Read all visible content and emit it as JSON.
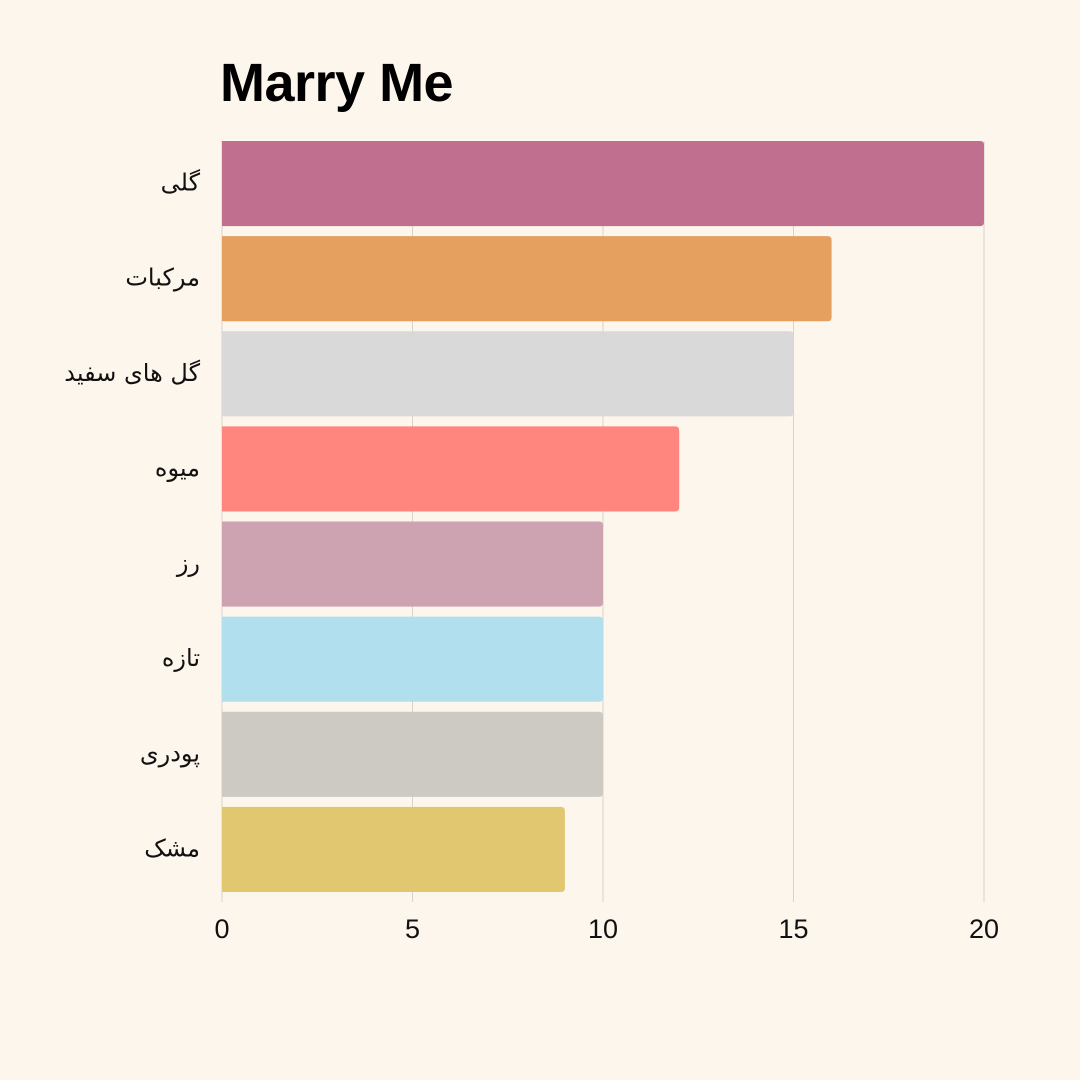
{
  "chart_data": {
    "type": "bar",
    "orientation": "horizontal",
    "title": "Marry Me",
    "xlabel": "",
    "ylabel": "",
    "categories": [
      "گلی",
      "مرکبات",
      "گل های سفید",
      "میوه",
      "رز",
      "تازه",
      "پودری",
      "مشک"
    ],
    "values": [
      20,
      16,
      15,
      12,
      10,
      10,
      10,
      9
    ],
    "colors": [
      "#c0708e",
      "#e59f5e",
      "#d9d9d9",
      "#ff867e",
      "#cea3b1",
      "#b2dfee",
      "#cdcac4",
      "#e1c76f"
    ],
    "xlim": [
      0,
      20
    ],
    "xticks": [
      0,
      5,
      10,
      15,
      20
    ],
    "grid": "vertical",
    "legend": "none"
  }
}
